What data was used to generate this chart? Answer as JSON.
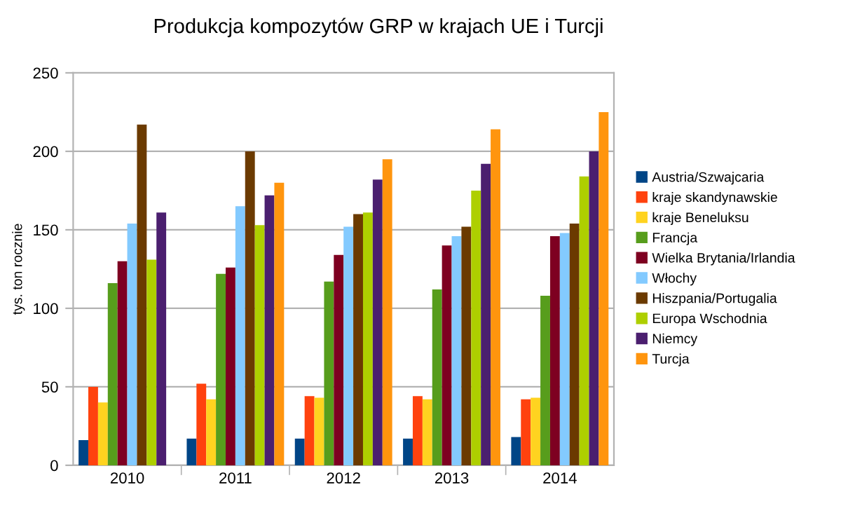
{
  "chart_data": {
    "type": "bar",
    "title": "Produkcja kompozytów GRP w krajach UE i Turcji",
    "ylabel": "tys. ton rocznie",
    "categories": [
      "2010",
      "2011",
      "2012",
      "2013",
      "2014"
    ],
    "series": [
      {
        "name": "Austria/Szwajcaria",
        "color": "#004586",
        "values": [
          16,
          17,
          17,
          17,
          18
        ]
      },
      {
        "name": "kraje skandynawskie",
        "color": "#ff420e",
        "values": [
          50,
          52,
          44,
          44,
          42
        ]
      },
      {
        "name": "kraje Beneluksu",
        "color": "#ffd320",
        "values": [
          40,
          42,
          43,
          42,
          43
        ]
      },
      {
        "name": "Francja",
        "color": "#579d1c",
        "values": [
          116,
          122,
          117,
          112,
          108
        ]
      },
      {
        "name": "Wielka Brytania/Irlandia",
        "color": "#7e0021",
        "values": [
          130,
          126,
          134,
          140,
          146
        ]
      },
      {
        "name": "Włochy",
        "color": "#83caff",
        "values": [
          154,
          165,
          152,
          146,
          148
        ]
      },
      {
        "name": "Hiszpania/Portugalia",
        "color": "#6b3a00",
        "values": [
          217,
          200,
          160,
          152,
          154
        ]
      },
      {
        "name": "Europa Wschodnia",
        "color": "#aecf00",
        "values": [
          131,
          153,
          161,
          175,
          184
        ]
      },
      {
        "name": "Niemcy",
        "color": "#4b1f6f",
        "values": [
          161,
          172,
          182,
          192,
          200
        ]
      },
      {
        "name": "Turcja",
        "color": "#ff950e",
        "values": [
          null,
          180,
          195,
          214,
          225
        ]
      }
    ],
    "ylim": [
      0,
      250
    ],
    "yticks": [
      0,
      50,
      100,
      150,
      200,
      250
    ],
    "grid": "y",
    "legend": "right"
  }
}
